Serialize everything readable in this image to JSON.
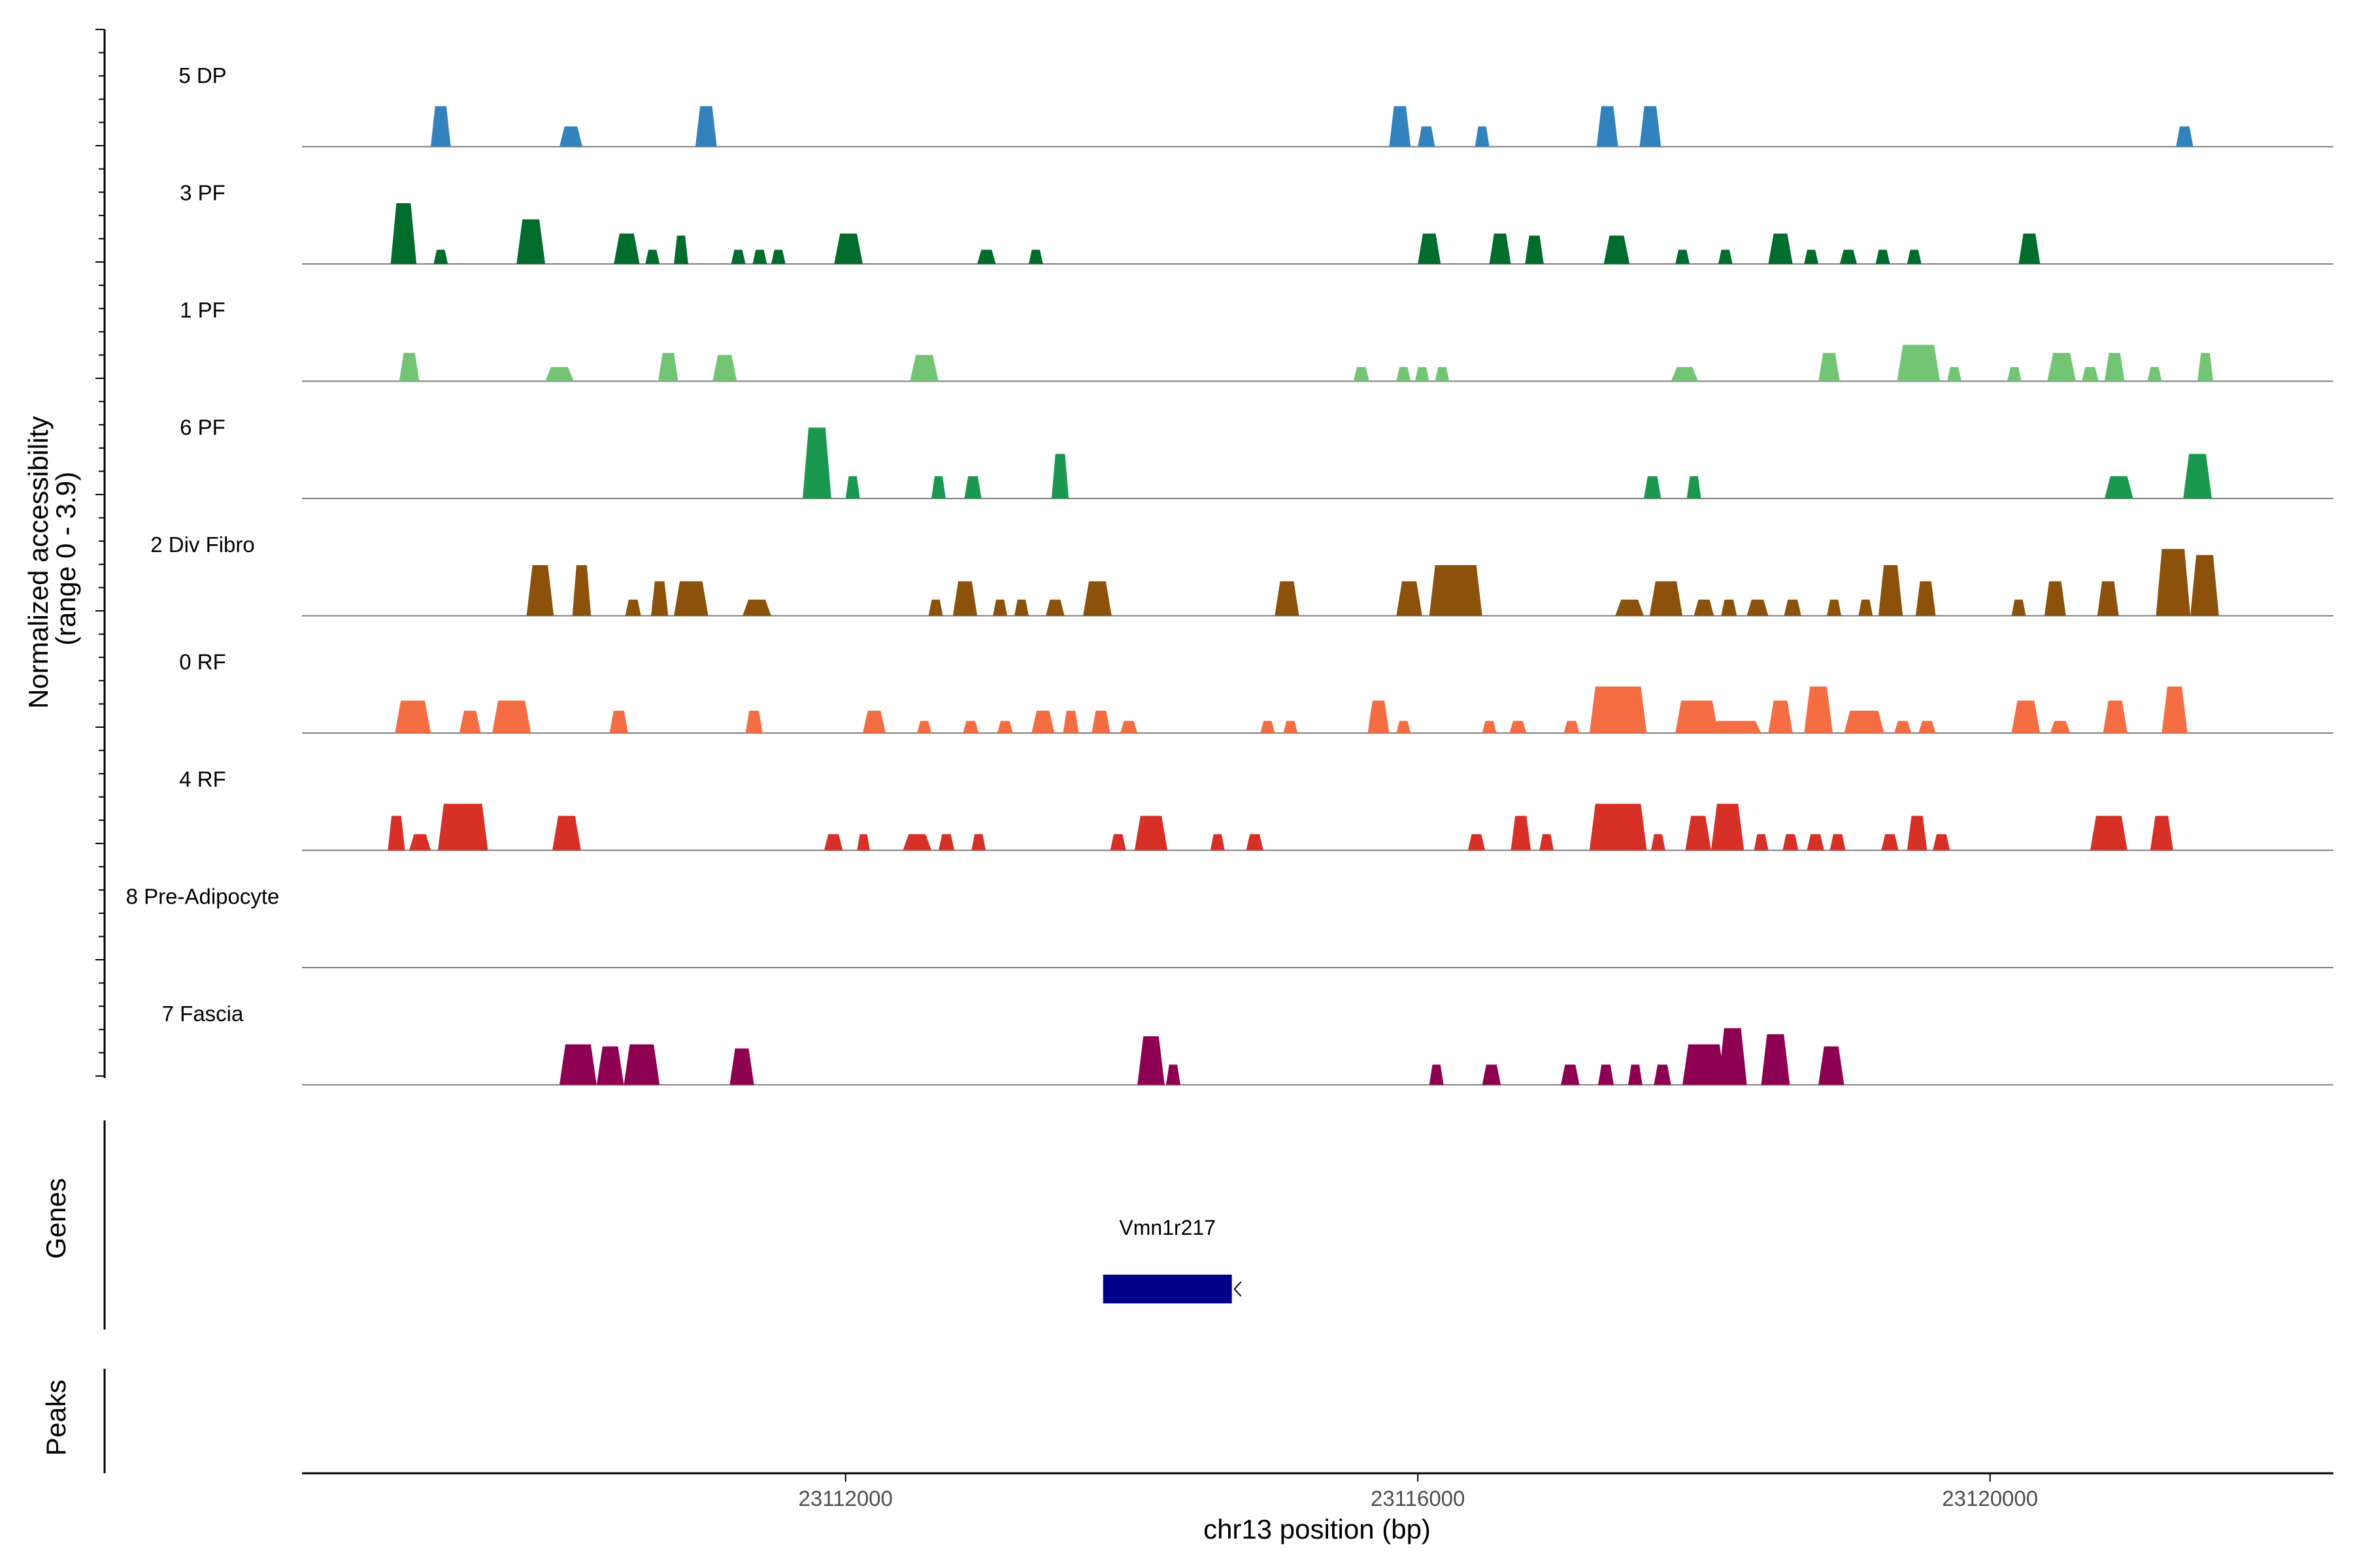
{
  "chart_data": {
    "type": "area",
    "chromosome": "chr13",
    "xlabel": "chr13 position (bp)",
    "ylabel": "Normalized accessibility\n(range 0 - 3.9)",
    "ylabel_lines": [
      "Normalized accessibility",
      "(range 0 - 3.9)"
    ],
    "y_range": [
      0,
      3.9
    ],
    "x_range": [
      23108200,
      23122400
    ],
    "x_ticks": [
      23112000,
      23116000,
      23120000
    ],
    "x_tick_labels": [
      "23112000",
      "23116000",
      "23120000"
    ],
    "tracks": [
      {
        "name": "5 DP",
        "color": "#3182bd",
        "peaks": [
          [
            23109100,
            23109240,
            2.0
          ],
          [
            23110000,
            23110160,
            1.0
          ],
          [
            23110950,
            23111100,
            2.0
          ],
          [
            23115800,
            23115950,
            2.0
          ],
          [
            23116000,
            23116120,
            1.0
          ],
          [
            23116400,
            23116500,
            1.0
          ],
          [
            23117250,
            23117400,
            2.0
          ],
          [
            23117550,
            23117700,
            2.0
          ],
          [
            23121300,
            23121420,
            1.0
          ]
        ]
      },
      {
        "name": "3 PF",
        "color": "#006d2c",
        "peaks": [
          [
            23108820,
            23109000,
            3.0
          ],
          [
            23109120,
            23109220,
            0.7
          ],
          [
            23109700,
            23109900,
            2.2
          ],
          [
            23110380,
            23110560,
            1.5
          ],
          [
            23110600,
            23110700,
            0.7
          ],
          [
            23110800,
            23110900,
            1.4
          ],
          [
            23111200,
            23111300,
            0.7
          ],
          [
            23111350,
            23111450,
            0.7
          ],
          [
            23111480,
            23111580,
            0.7
          ],
          [
            23111920,
            23112120,
            1.5
          ],
          [
            23112920,
            23113050,
            0.7
          ],
          [
            23113280,
            23113380,
            0.7
          ],
          [
            23116000,
            23116160,
            1.5
          ],
          [
            23116500,
            23116650,
            1.5
          ],
          [
            23116750,
            23116880,
            1.4
          ],
          [
            23117300,
            23117480,
            1.4
          ],
          [
            23117800,
            23117900,
            0.7
          ],
          [
            23118100,
            23118200,
            0.7
          ],
          [
            23118450,
            23118620,
            1.5
          ],
          [
            23118700,
            23118800,
            0.7
          ],
          [
            23118950,
            23119070,
            0.7
          ],
          [
            23119200,
            23119300,
            0.7
          ],
          [
            23119420,
            23119520,
            0.7
          ],
          [
            23120200,
            23120350,
            1.5
          ]
        ]
      },
      {
        "name": "1 PF",
        "color": "#74c476",
        "peaks": [
          [
            23108880,
            23109020,
            1.4
          ],
          [
            23109900,
            23110100,
            0.7
          ],
          [
            23110690,
            23110830,
            1.4
          ],
          [
            23111070,
            23111240,
            1.3
          ],
          [
            23112450,
            23112650,
            1.3
          ],
          [
            23115550,
            23115660,
            0.7
          ],
          [
            23115850,
            23115950,
            0.7
          ],
          [
            23115980,
            23116080,
            0.7
          ],
          [
            23116120,
            23116220,
            0.7
          ],
          [
            23117770,
            23117960,
            0.7
          ],
          [
            23118800,
            23118950,
            1.4
          ],
          [
            23119350,
            23119650,
            1.8
          ],
          [
            23119700,
            23119800,
            0.7
          ],
          [
            23120120,
            23120220,
            0.7
          ],
          [
            23120400,
            23120600,
            1.4
          ],
          [
            23120640,
            23120760,
            0.7
          ],
          [
            23120800,
            23120940,
            1.4
          ],
          [
            23121100,
            23121200,
            0.7
          ],
          [
            23121450,
            23121560,
            1.4
          ]
        ]
      },
      {
        "name": "6 PF",
        "color": "#1a9850",
        "peaks": [
          [
            23111700,
            23111900,
            3.5
          ],
          [
            23112000,
            23112100,
            1.1
          ],
          [
            23112600,
            23112700,
            1.1
          ],
          [
            23112830,
            23112950,
            1.1
          ],
          [
            23113440,
            23113560,
            2.2
          ],
          [
            23117580,
            23117700,
            1.1
          ],
          [
            23117880,
            23117980,
            1.1
          ],
          [
            23120800,
            23121000,
            1.1
          ],
          [
            23121350,
            23121550,
            2.2
          ]
        ]
      },
      {
        "name": "2 Div Fibro",
        "color": "#8c510a",
        "peaks": [
          [
            23109770,
            23109960,
            2.5
          ],
          [
            23110090,
            23110220,
            2.5
          ],
          [
            23110460,
            23110570,
            0.8
          ],
          [
            23110640,
            23110760,
            1.7
          ],
          [
            23110800,
            23111040,
            1.7
          ],
          [
            23111280,
            23111480,
            0.8
          ],
          [
            23112580,
            23112680,
            0.8
          ],
          [
            23112750,
            23112920,
            1.7
          ],
          [
            23113030,
            23113130,
            0.8
          ],
          [
            23113180,
            23113280,
            0.8
          ],
          [
            23113400,
            23113530,
            0.8
          ],
          [
            23113660,
            23113860,
            1.7
          ],
          [
            23115000,
            23115170,
            1.7
          ],
          [
            23115850,
            23116030,
            1.7
          ],
          [
            23116080,
            23116450,
            2.5
          ],
          [
            23117380,
            23117580,
            0.8
          ],
          [
            23117620,
            23117850,
            1.7
          ],
          [
            23117930,
            23118070,
            0.8
          ],
          [
            23118120,
            23118230,
            0.8
          ],
          [
            23118300,
            23118450,
            0.8
          ],
          [
            23118560,
            23118680,
            0.8
          ],
          [
            23118860,
            23118960,
            0.8
          ],
          [
            23119080,
            23119180,
            0.8
          ],
          [
            23119220,
            23119390,
            2.5
          ],
          [
            23119480,
            23119620,
            1.7
          ],
          [
            23120150,
            23120250,
            0.8
          ],
          [
            23120380,
            23120530,
            1.7
          ],
          [
            23120750,
            23120900,
            1.7
          ],
          [
            23121160,
            23121400,
            3.3
          ],
          [
            23121400,
            23121600,
            3.0
          ]
        ]
      },
      {
        "name": "0 RF",
        "color": "#f46d43",
        "peaks": [
          [
            23108850,
            23109100,
            1.6
          ],
          [
            23109300,
            23109450,
            1.1
          ],
          [
            23109530,
            23109800,
            1.6
          ],
          [
            23110350,
            23110480,
            1.1
          ],
          [
            23111300,
            23111420,
            1.1
          ],
          [
            23112120,
            23112280,
            1.1
          ],
          [
            23112500,
            23112600,
            0.6
          ],
          [
            23112820,
            23112930,
            0.6
          ],
          [
            23113060,
            23113170,
            0.6
          ],
          [
            23113300,
            23113460,
            1.1
          ],
          [
            23113520,
            23113630,
            1.1
          ],
          [
            23113720,
            23113850,
            1.1
          ],
          [
            23113920,
            23114040,
            0.6
          ],
          [
            23114900,
            23115000,
            0.6
          ],
          [
            23115060,
            23115160,
            0.6
          ],
          [
            23115650,
            23115800,
            1.6
          ],
          [
            23115850,
            23115950,
            0.6
          ],
          [
            23116450,
            23116550,
            0.6
          ],
          [
            23116640,
            23116760,
            0.6
          ],
          [
            23117020,
            23117130,
            0.6
          ],
          [
            23117200,
            23117600,
            2.3
          ],
          [
            23117800,
            23118100,
            1.6
          ],
          [
            23118050,
            23118400,
            0.6
          ],
          [
            23118450,
            23118620,
            1.6
          ],
          [
            23118700,
            23118900,
            2.3
          ],
          [
            23118980,
            23119260,
            1.1
          ],
          [
            23119330,
            23119450,
            0.6
          ],
          [
            23119500,
            23119620,
            0.6
          ],
          [
            23120150,
            23120350,
            1.6
          ],
          [
            23120420,
            23120560,
            0.6
          ],
          [
            23120790,
            23120960,
            1.6
          ],
          [
            23121200,
            23121380,
            2.3
          ]
        ]
      },
      {
        "name": "4 RF",
        "color": "#d73027",
        "peaks": [
          [
            23108800,
            23108920,
            1.7
          ],
          [
            23108950,
            23109100,
            0.8
          ],
          [
            23109150,
            23109500,
            2.3
          ],
          [
            23109950,
            23110150,
            1.7
          ],
          [
            23111850,
            23111980,
            0.8
          ],
          [
            23112080,
            23112170,
            0.8
          ],
          [
            23112400,
            23112600,
            0.8
          ],
          [
            23112650,
            23112760,
            0.8
          ],
          [
            23112880,
            23112980,
            0.8
          ],
          [
            23113850,
            23113960,
            0.8
          ],
          [
            23114020,
            23114250,
            1.7
          ],
          [
            23114550,
            23114650,
            0.8
          ],
          [
            23114800,
            23114920,
            0.8
          ],
          [
            23116350,
            23116470,
            0.8
          ],
          [
            23116650,
            23116790,
            1.7
          ],
          [
            23116850,
            23116950,
            0.8
          ],
          [
            23117200,
            23117600,
            2.3
          ],
          [
            23117630,
            23117730,
            0.8
          ],
          [
            23117870,
            23118050,
            1.7
          ],
          [
            23118050,
            23118280,
            2.3
          ],
          [
            23118350,
            23118450,
            0.8
          ],
          [
            23118550,
            23118660,
            0.8
          ],
          [
            23118720,
            23118840,
            0.8
          ],
          [
            23118880,
            23118990,
            0.8
          ],
          [
            23119240,
            23119360,
            0.8
          ],
          [
            23119420,
            23119560,
            1.7
          ],
          [
            23119600,
            23119720,
            0.8
          ],
          [
            23120700,
            23120960,
            1.7
          ],
          [
            23121120,
            23121280,
            1.7
          ]
        ]
      },
      {
        "name": "8 Pre-Adipocyte",
        "color": "#b2182b",
        "peaks": []
      },
      {
        "name": "7 Fascia",
        "color": "#8e0152",
        "peaks": [
          [
            23110000,
            23110260,
            2.0
          ],
          [
            23110260,
            23110450,
            1.9
          ],
          [
            23110450,
            23110700,
            2.0
          ],
          [
            23111190,
            23111360,
            1.8
          ],
          [
            23114040,
            23114230,
            2.4
          ],
          [
            23114240,
            23114340,
            1.0
          ],
          [
            23116080,
            23116180,
            1.0
          ],
          [
            23116450,
            23116580,
            1.0
          ],
          [
            23117000,
            23117130,
            1.0
          ],
          [
            23117260,
            23117370,
            1.0
          ],
          [
            23117470,
            23117570,
            1.0
          ],
          [
            23117650,
            23117770,
            1.0
          ],
          [
            23117850,
            23118150,
            2.0
          ],
          [
            23118100,
            23118300,
            2.8
          ],
          [
            23118400,
            23118600,
            2.5
          ],
          [
            23118800,
            23118980,
            1.9
          ]
        ]
      }
    ],
    "genes": [
      {
        "name": "Vmn1r217",
        "start": 23113800,
        "end": 23114700,
        "strand": "-"
      }
    ],
    "panel_labels": [
      "Genes",
      "Peaks"
    ],
    "peaks_track": []
  }
}
